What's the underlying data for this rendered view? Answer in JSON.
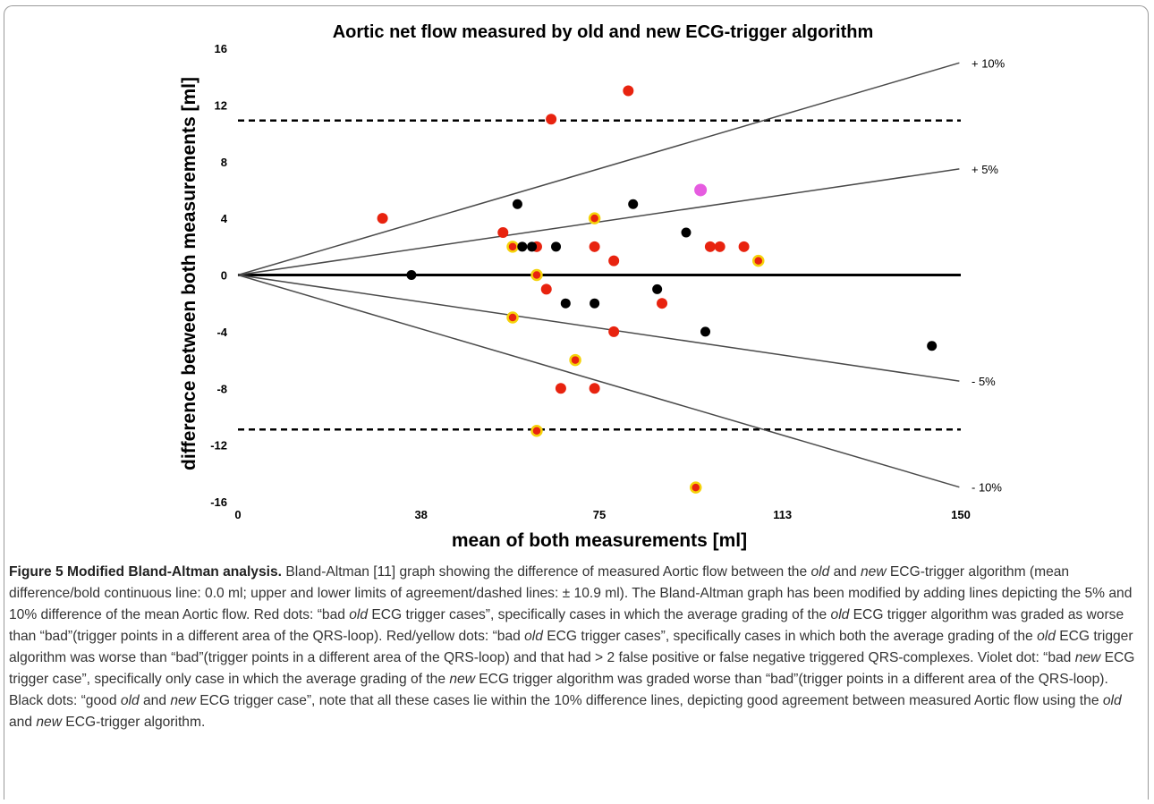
{
  "chart_data": {
    "type": "scatter",
    "title": "Aortic net flow measured by old and new ECG-trigger algorithm",
    "xlabel": "mean of both measurements [ml]",
    "ylabel": "difference between both measurements [ml]",
    "xlim": [
      0,
      150
    ],
    "ylim": [
      -16,
      16
    ],
    "xticks": [
      0,
      38,
      75,
      113,
      150
    ],
    "yticks": [
      16,
      12,
      8,
      4,
      0,
      -4,
      -8,
      -12,
      -16
    ],
    "grid": false,
    "reference_lines": [
      {
        "type": "horizontal",
        "y": 0,
        "style": "bold"
      },
      {
        "type": "horizontal",
        "y": 10.9,
        "style": "dashed"
      },
      {
        "type": "horizontal",
        "y": -10.9,
        "style": "dashed"
      },
      {
        "type": "proportional",
        "fraction": 0.1,
        "label": "+ 10%"
      },
      {
        "type": "proportional",
        "fraction": 0.05,
        "label": "+ 5%"
      },
      {
        "type": "proportional",
        "fraction": -0.05,
        "label": "- 5%"
      },
      {
        "type": "proportional",
        "fraction": -0.1,
        "label": "- 10%"
      }
    ],
    "colors": {
      "red": "#e8230f",
      "red_yellow_fill": "#e8230f",
      "red_yellow_ring": "#f5d20a",
      "violet": "#e65ce0",
      "black": "#000000"
    },
    "series": [
      {
        "color_key": "red",
        "points": [
          [
            30,
            4
          ],
          [
            55,
            3
          ],
          [
            65,
            11
          ],
          [
            81,
            13
          ],
          [
            62,
            2
          ],
          [
            64,
            -1
          ],
          [
            74,
            2
          ],
          [
            78,
            1
          ],
          [
            88,
            -2
          ],
          [
            98,
            2
          ],
          [
            100,
            2
          ],
          [
            105,
            2
          ],
          [
            78,
            -4
          ],
          [
            67,
            -8
          ],
          [
            74,
            -8
          ]
        ]
      },
      {
        "color_key": "red_yellow",
        "points": [
          [
            57,
            2
          ],
          [
            74,
            4
          ],
          [
            62,
            0
          ],
          [
            57,
            -3
          ],
          [
            70,
            -6
          ],
          [
            62,
            -11
          ],
          [
            108,
            1
          ],
          [
            95,
            -15
          ]
        ]
      },
      {
        "color_key": "violet",
        "points": [
          [
            96,
            6
          ]
        ]
      },
      {
        "color_key": "black",
        "points": [
          [
            36,
            0
          ],
          [
            58,
            5
          ],
          [
            59,
            2
          ],
          [
            61,
            2
          ],
          [
            66,
            2
          ],
          [
            82,
            5
          ],
          [
            93,
            3
          ],
          [
            87,
            -1
          ],
          [
            68,
            -2
          ],
          [
            74,
            -2
          ],
          [
            97,
            -4
          ],
          [
            144,
            -5
          ]
        ]
      }
    ]
  },
  "caption": {
    "label": "Figure 5 Modified Bland-Altman analysis.",
    "t1": " Bland-Altman [11] graph showing the difference of measured Aortic flow between the ",
    "w_old": "old",
    "t2": " and ",
    "w_new": "new",
    "t3": " ECG-trigger algorithm (mean difference/bold continuous line: 0.0 ml; upper and lower limits of agreement/dashed lines: ± 10.9 ml). The Bland-Altman graph has been modified by adding lines depicting the 5% and 10% difference of the mean Aortic flow. Red dots: “bad ",
    "t4": " ECG trigger cases”, specifically cases in which the average grading of the ",
    "t5": " ECG trigger algorithm was graded as worse than “bad”(trigger points in a different area of the QRS-loop). Red/yellow dots: “bad ",
    "t6": " ECG trigger cases”, specifically cases in which both the average grading of the ",
    "t7": " ECG trigger algorithm was worse than “bad”(trigger points in a different area of the QRS-loop) and that had > 2 false positive or false negative triggered QRS-complexes. Violet dot: “bad ",
    "t8": " ECG trigger case”, specifically only case in which the average grading of the ",
    "t9": " ECG trigger algorithm was graded worse than “bad”(trigger points in a different area of the QRS-loop). Black dots: “good ",
    "t10": " and ",
    "t11": " ECG trigger case”, note that all these cases lie within the 10% difference lines, depicting good agreement between measured Aortic flow using the ",
    "t12": " and ",
    "t13": " ECG-trigger algorithm."
  }
}
